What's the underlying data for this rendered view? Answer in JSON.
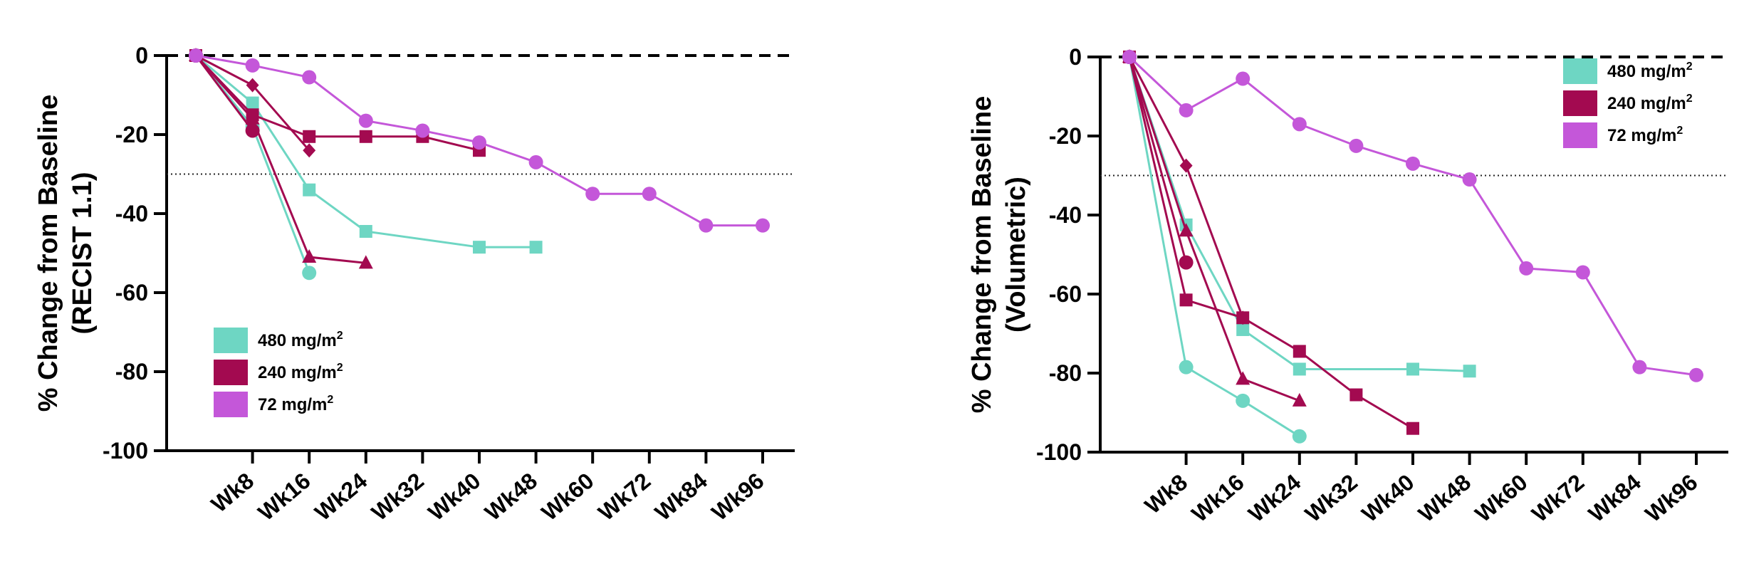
{
  "colors": {
    "480": "#6ed6c3",
    "240": "#a30a50",
    "72": "#c457d9",
    "axis": "#000000"
  },
  "chart_data": [
    {
      "type": "line",
      "ylabel_line1": "% Change from Baseline",
      "ylabel_line2": "(RECIST 1.1)",
      "x_categories": [
        "Wk8",
        "Wk16",
        "Wk24",
        "Wk32",
        "Wk40",
        "Wk48",
        "Wk60",
        "Wk72",
        "Wk84",
        "Wk96"
      ],
      "ylim": [
        -100,
        0
      ],
      "yticks": [
        "0",
        "-20",
        "-40",
        "-60",
        "-80",
        "-100"
      ],
      "response_threshold": -30,
      "legend": {
        "placement": "bottom-left",
        "entries": [
          {
            "label": "480 mg/m",
            "sup": "2",
            "group": "480"
          },
          {
            "label": "240 mg/m",
            "sup": "2",
            "group": "240"
          },
          {
            "label": "72 mg/m",
            "sup": "2",
            "group": "72"
          }
        ]
      },
      "series": [
        {
          "group": "480",
          "marker": "square",
          "points": [
            [
              0,
              0
            ],
            [
              1,
              -12
            ],
            [
              2,
              -34
            ],
            [
              3,
              -44.5
            ],
            [
              5,
              -48.5
            ],
            [
              6,
              -48.5
            ]
          ]
        },
        {
          "group": "480",
          "marker": "circle",
          "points": [
            [
              0,
              0
            ],
            [
              1,
              -18
            ],
            [
              2,
              -55
            ]
          ]
        },
        {
          "group": "240",
          "marker": "square",
          "points": [
            [
              0,
              0
            ],
            [
              1,
              -15
            ],
            [
              2,
              -20.5
            ],
            [
              3,
              -20.5
            ],
            [
              4,
              -20.5
            ],
            [
              5,
              -24
            ]
          ]
        },
        {
          "group": "240",
          "marker": "triangle",
          "points": [
            [
              0,
              0
            ],
            [
              1,
              -16
            ],
            [
              2,
              -51
            ],
            [
              3,
              -52.5
            ]
          ]
        },
        {
          "group": "240",
          "marker": "diamond",
          "points": [
            [
              0,
              0
            ],
            [
              1,
              -7.5
            ],
            [
              2,
              -24
            ]
          ]
        },
        {
          "group": "240",
          "marker": "circle",
          "points": [
            [
              0,
              0
            ],
            [
              1,
              -19
            ]
          ]
        },
        {
          "group": "72",
          "marker": "circle",
          "points": [
            [
              0,
              0
            ],
            [
              1,
              -2.5
            ],
            [
              2,
              -5.5
            ],
            [
              3,
              -16.5
            ],
            [
              4,
              -19
            ],
            [
              5,
              -22
            ],
            [
              6,
              -27
            ],
            [
              7,
              -35
            ],
            [
              8,
              -35
            ],
            [
              9,
              -43
            ],
            [
              10,
              -43
            ]
          ]
        }
      ]
    },
    {
      "type": "line",
      "ylabel_line1": "% Change from Baseline",
      "ylabel_line2": "(Volumetric)",
      "x_categories": [
        "Wk8",
        "Wk16",
        "Wk24",
        "Wk32",
        "Wk40",
        "Wk48",
        "Wk60",
        "Wk72",
        "Wk84",
        "Wk96"
      ],
      "ylim": [
        -100,
        0
      ],
      "yticks": [
        "0",
        "-20",
        "-40",
        "-60",
        "-80",
        "-100"
      ],
      "response_threshold": -30,
      "legend": {
        "placement": "top-right",
        "entries": [
          {
            "label": "480 mg/m",
            "sup": "2",
            "group": "480"
          },
          {
            "label": "240 mg/m",
            "sup": "2",
            "group": "240"
          },
          {
            "label": "72 mg/m",
            "sup": "2",
            "group": "72"
          }
        ]
      },
      "series": [
        {
          "group": "480",
          "marker": "square",
          "points": [
            [
              0,
              0
            ],
            [
              1,
              -42.5
            ],
            [
              2,
              -69
            ],
            [
              3,
              -79
            ],
            [
              5,
              -79
            ],
            [
              6,
              -79.5
            ]
          ]
        },
        {
          "group": "480",
          "marker": "circle",
          "points": [
            [
              0,
              0
            ],
            [
              1,
              -78.5
            ],
            [
              2,
              -87
            ],
            [
              3,
              -96
            ]
          ]
        },
        {
          "group": "240",
          "marker": "square",
          "points": [
            [
              0,
              0
            ],
            [
              1,
              -61.5
            ],
            [
              2,
              -66
            ],
            [
              3,
              -74.5
            ],
            [
              4,
              -85.5
            ],
            [
              5,
              -94
            ]
          ]
        },
        {
          "group": "240",
          "marker": "triangle",
          "points": [
            [
              0,
              0
            ],
            [
              1,
              -44
            ],
            [
              2,
              -81.5
            ],
            [
              3,
              -87
            ]
          ]
        },
        {
          "group": "240",
          "marker": "diamond",
          "points": [
            [
              0,
              0
            ],
            [
              1,
              -27.5
            ],
            [
              2,
              -66
            ]
          ]
        },
        {
          "group": "240",
          "marker": "circle",
          "points": [
            [
              0,
              0
            ],
            [
              1,
              -52
            ]
          ]
        },
        {
          "group": "72",
          "marker": "circle",
          "points": [
            [
              0,
              0
            ],
            [
              1,
              -13.5
            ],
            [
              2,
              -5.5
            ],
            [
              3,
              -17
            ],
            [
              4,
              -22.5
            ],
            [
              5,
              -27
            ],
            [
              6,
              -31
            ],
            [
              7,
              -53.5
            ],
            [
              8,
              -54.5
            ],
            [
              9,
              -78.5
            ],
            [
              10,
              -80.5
            ]
          ]
        }
      ]
    }
  ]
}
